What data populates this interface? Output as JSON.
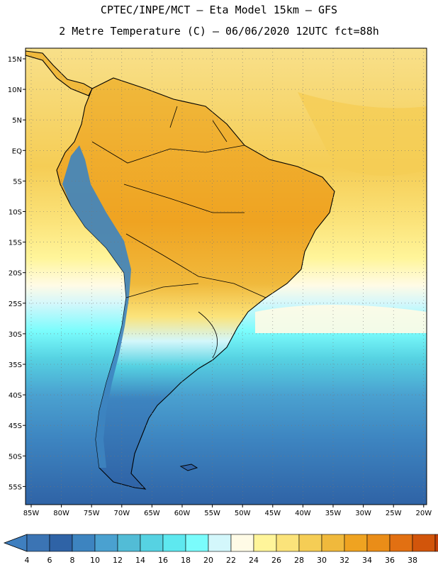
{
  "title_line1": "CPTEC/INPE/MCT –  Eta Model 15km – GFS",
  "title_line2": "2 Metre Temperature (C) – 06/06/2020 12UTC fct=88h",
  "lat_labels": [
    "15N",
    "10N",
    "5N",
    "EQ",
    "5S",
    "10S",
    "15S",
    "20S",
    "25S",
    "30S",
    "35S",
    "40S",
    "45S",
    "50S",
    "55S"
  ],
  "lon_labels": [
    "85W",
    "80W",
    "75W",
    "70W",
    "65W",
    "60W",
    "55W",
    "50W",
    "45W",
    "40W",
    "35W",
    "30W",
    "25W",
    "20W"
  ],
  "colorbar": {
    "labels": [
      "4",
      "6",
      "8",
      "10",
      "12",
      "14",
      "16",
      "18",
      "20",
      "22",
      "24",
      "26",
      "28",
      "30",
      "32",
      "34",
      "36",
      "38"
    ],
    "colors": [
      "#3b74b4",
      "#2f63a6",
      "#3d84c0",
      "#4aa1d0",
      "#52bcd6",
      "#56d2e2",
      "#5ee8ef",
      "#7afcfc",
      "#d3f7fb",
      "#fffbe6",
      "#fff59a",
      "#fbe37a",
      "#f5cd55",
      "#f0b93c",
      "#efa321",
      "#ea8d18",
      "#e27012",
      "#d2550b",
      "#c24009"
    ],
    "under_color": "#3f7fbf",
    "over_color": "#b9360b"
  }
}
